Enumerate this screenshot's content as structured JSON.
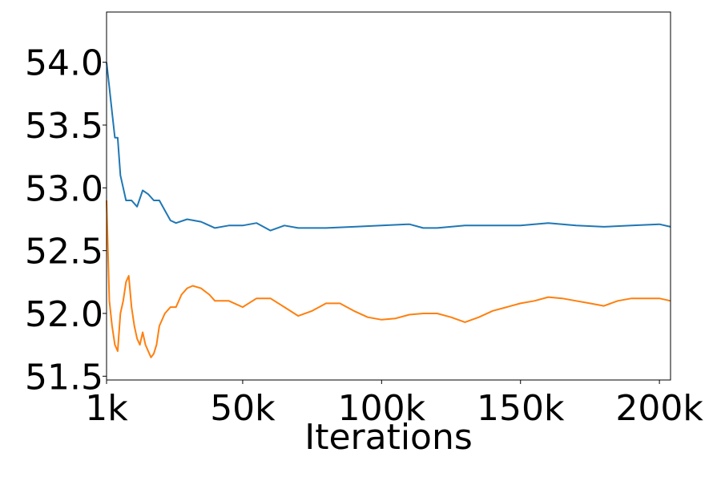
{
  "chart_data": {
    "type": "line",
    "x_label": "Iterations",
    "xlim": [
      1000,
      204000
    ],
    "ylim": [
      51.47,
      54.4
    ],
    "xticks": [
      {
        "value": 1000,
        "label": "1k"
      },
      {
        "value": 50000,
        "label": "50k"
      },
      {
        "value": 100000,
        "label": "100k"
      },
      {
        "value": 150000,
        "label": "150k"
      },
      {
        "value": 200000,
        "label": "200k"
      }
    ],
    "yticks": [
      {
        "value": 51.5,
        "label": "51.5"
      },
      {
        "value": 52.0,
        "label": "52.0"
      },
      {
        "value": 52.5,
        "label": "52.5"
      },
      {
        "value": 53.0,
        "label": "53.0"
      },
      {
        "value": 53.5,
        "label": "53.5"
      },
      {
        "value": 54.0,
        "label": "54.0"
      }
    ],
    "grid": false,
    "series": [
      {
        "color": "#1f77b4",
        "x": [
          1000,
          2000,
          3000,
          4000,
          5000,
          6000,
          7000,
          8000,
          10000,
          12000,
          14000,
          16000,
          18000,
          20000,
          22000,
          24000,
          26000,
          30000,
          35000,
          40000,
          45000,
          50000,
          55000,
          60000,
          65000,
          70000,
          80000,
          90000,
          100000,
          110000,
          115000,
          120000,
          130000,
          140000,
          150000,
          160000,
          170000,
          180000,
          190000,
          200000,
          204000
        ],
        "values": [
          54.0,
          53.8,
          53.6,
          53.4,
          53.4,
          53.1,
          53.0,
          52.9,
          52.9,
          52.85,
          52.98,
          52.95,
          52.9,
          52.9,
          52.82,
          52.74,
          52.72,
          52.75,
          52.73,
          52.68,
          52.7,
          52.7,
          52.72,
          52.66,
          52.7,
          52.68,
          52.68,
          52.69,
          52.7,
          52.71,
          52.68,
          52.68,
          52.7,
          52.7,
          52.7,
          52.72,
          52.7,
          52.69,
          52.7,
          52.71,
          52.69
        ]
      },
      {
        "color": "#ff7f0e",
        "x": [
          1000,
          2000,
          3000,
          4000,
          5000,
          6000,
          7000,
          8000,
          9000,
          10000,
          11000,
          12000,
          13000,
          14000,
          15000,
          16000,
          17000,
          18000,
          19000,
          20000,
          22000,
          24000,
          26000,
          28000,
          30000,
          32000,
          35000,
          38000,
          40000,
          45000,
          50000,
          55000,
          60000,
          65000,
          70000,
          75000,
          80000,
          85000,
          90000,
          95000,
          100000,
          105000,
          110000,
          115000,
          120000,
          125000,
          130000,
          135000,
          140000,
          145000,
          150000,
          155000,
          160000,
          165000,
          170000,
          175000,
          180000,
          185000,
          190000,
          195000,
          200000,
          204000
        ],
        "values": [
          52.9,
          52.1,
          51.9,
          51.75,
          51.7,
          52.0,
          52.1,
          52.25,
          52.3,
          52.05,
          51.9,
          51.8,
          51.75,
          51.85,
          51.75,
          51.7,
          51.65,
          51.68,
          51.75,
          51.9,
          52.0,
          52.05,
          52.05,
          52.15,
          52.2,
          52.22,
          52.2,
          52.15,
          52.1,
          52.1,
          52.05,
          52.12,
          52.12,
          52.05,
          51.98,
          52.02,
          52.08,
          52.08,
          52.02,
          51.97,
          51.95,
          51.96,
          51.99,
          52.0,
          52.0,
          51.97,
          51.93,
          51.97,
          52.02,
          52.05,
          52.08,
          52.1,
          52.13,
          52.12,
          52.1,
          52.08,
          52.06,
          52.1,
          52.12,
          52.12,
          52.12,
          52.1
        ]
      }
    ]
  }
}
